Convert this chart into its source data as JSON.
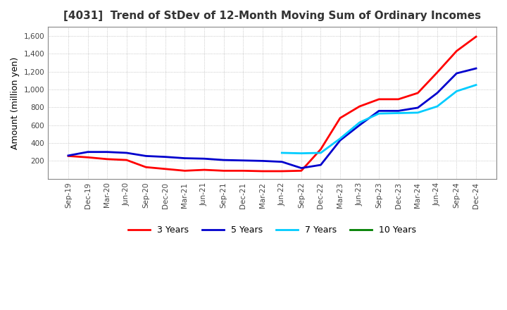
{
  "title": "[4031]  Trend of StDev of 12-Month Moving Sum of Ordinary Incomes",
  "ylabel": "Amount (million yen)",
  "ylim": [
    0,
    1700
  ],
  "yticks": [
    200,
    400,
    600,
    800,
    1000,
    1200,
    1400,
    1600
  ],
  "background_color": "#ffffff",
  "plot_background_color": "#ffffff",
  "legend": [
    "3 Years",
    "5 Years",
    "7 Years",
    "10 Years"
  ],
  "legend_colors": [
    "#ff0000",
    "#0000cd",
    "#00ccff",
    "#008000"
  ],
  "x_labels": [
    "Sep-19",
    "Dec-19",
    "Mar-20",
    "Jun-20",
    "Sep-20",
    "Dec-20",
    "Mar-21",
    "Jun-21",
    "Sep-21",
    "Dec-21",
    "Mar-22",
    "Jun-22",
    "Sep-22",
    "Dec-22",
    "Mar-23",
    "Jun-23",
    "Sep-23",
    "Dec-23",
    "Mar-24",
    "Jun-24",
    "Sep-24",
    "Dec-24"
  ],
  "series_3y": [
    255,
    240,
    220,
    210,
    130,
    110,
    90,
    100,
    90,
    90,
    85,
    85,
    90,
    330,
    680,
    810,
    890,
    890,
    960,
    1190,
    1430,
    1590
  ],
  "series_5y": [
    260,
    300,
    300,
    290,
    255,
    245,
    230,
    225,
    210,
    205,
    200,
    190,
    120,
    155,
    430,
    600,
    760,
    760,
    795,
    960,
    1180,
    1235
  ],
  "series_7y": [
    null,
    null,
    null,
    null,
    null,
    null,
    null,
    null,
    null,
    null,
    null,
    290,
    285,
    290,
    450,
    630,
    730,
    735,
    740,
    810,
    980,
    1050
  ],
  "series_10y": [
    null,
    null,
    null,
    null,
    null,
    null,
    null,
    null,
    null,
    null,
    null,
    null,
    null,
    null,
    null,
    null,
    null,
    null,
    null,
    null,
    null,
    null
  ]
}
